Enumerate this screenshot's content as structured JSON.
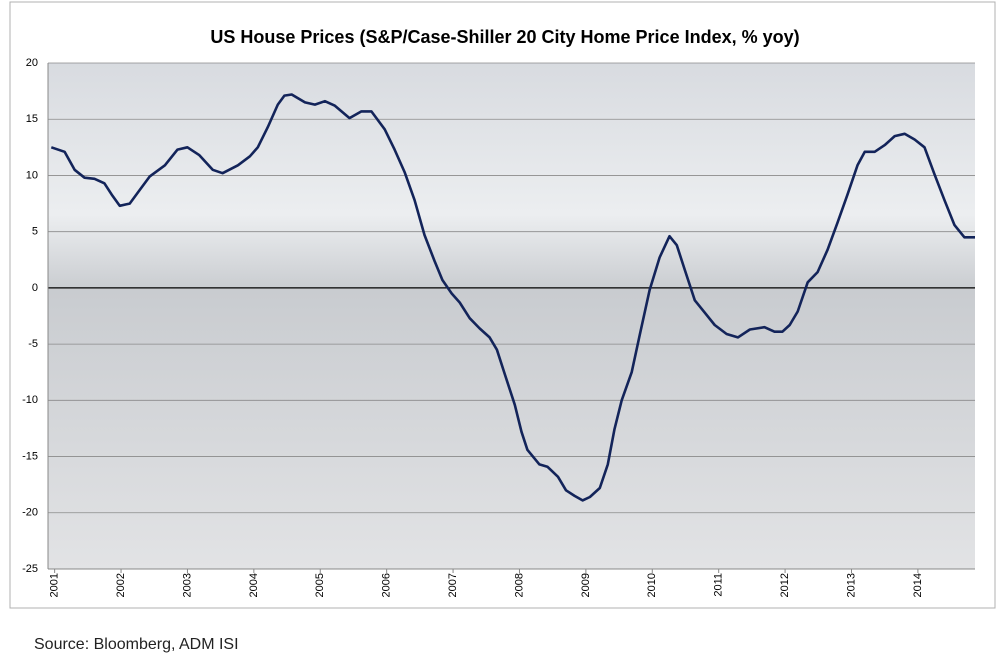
{
  "chart_data": {
    "type": "line",
    "title": "US House Prices (S&P/Case-Shiller 20 City Home Price Index, % yoy)",
    "source": "Source: Bloomberg, ADM ISI",
    "x": [
      2000.95,
      2001.15,
      2001.3,
      2001.45,
      2001.6,
      2001.75,
      2001.86,
      2001.98,
      2002.13,
      2002.28,
      2002.43,
      2002.66,
      2002.85,
      2003.0,
      2003.18,
      2003.38,
      2003.53,
      2003.76,
      2003.94,
      2004.06,
      2004.21,
      2004.36,
      2004.46,
      2004.57,
      2004.77,
      2004.92,
      2005.07,
      2005.22,
      2005.44,
      2005.62,
      2005.77,
      2005.97,
      2006.12,
      2006.27,
      2006.42,
      2006.57,
      2006.72,
      2006.84,
      2006.98,
      2007.1,
      2007.25,
      2007.4,
      2007.55,
      2007.66,
      2007.78,
      2007.93,
      2008.03,
      2008.12,
      2008.3,
      2008.42,
      2008.58,
      2008.7,
      2008.83,
      2008.95,
      2009.06,
      2009.21,
      2009.33,
      2009.43,
      2009.54,
      2009.69,
      2009.81,
      2009.96,
      2010.11,
      2010.26,
      2010.37,
      2010.49,
      2010.64,
      2010.79,
      2010.94,
      2011.12,
      2011.29,
      2011.47,
      2011.69,
      2011.84,
      2011.96,
      2012.07,
      2012.19,
      2012.34,
      2012.49,
      2012.64,
      2012.79,
      2012.94,
      2013.09,
      2013.2,
      2013.35,
      2013.5,
      2013.65,
      2013.8,
      2013.95,
      2014.1,
      2014.25,
      2014.4,
      2014.55,
      2014.7,
      2014.86
    ],
    "series": [
      {
        "name": "S&P/Case-Shiller 20 City",
        "color": "#13245a",
        "values": [
          12.5,
          12.1,
          10.5,
          9.8,
          9.7,
          9.3,
          8.3,
          7.3,
          7.5,
          8.7,
          9.9,
          10.9,
          12.3,
          12.5,
          11.8,
          10.5,
          10.2,
          10.9,
          11.7,
          12.5,
          14.3,
          16.3,
          17.1,
          17.2,
          16.5,
          16.3,
          16.6,
          16.2,
          15.1,
          15.7,
          15.7,
          14.1,
          12.3,
          10.3,
          7.8,
          4.7,
          2.4,
          0.7,
          -0.5,
          -1.3,
          -2.7,
          -3.6,
          -4.4,
          -5.5,
          -7.7,
          -10.4,
          -12.8,
          -14.4,
          -15.7,
          -15.9,
          -16.8,
          -18,
          -18.5,
          -18.9,
          -18.6,
          -17.8,
          -15.7,
          -12.6,
          -10,
          -7.5,
          -4.2,
          -0.2,
          2.7,
          4.6,
          3.8,
          1.6,
          -1.1,
          -2.2,
          -3.3,
          -4.1,
          -4.4,
          -3.7,
          -3.5,
          -3.9,
          -3.9,
          -3.3,
          -2.1,
          0.5,
          1.4,
          3.4,
          5.8,
          8.3,
          10.9,
          12.1,
          12.1,
          12.7,
          13.5,
          13.7,
          13.2,
          12.5,
          10.1,
          7.8,
          5.6,
          4.5,
          4.5
        ]
      }
    ],
    "xlim": [
      2000.9,
      2014.86
    ],
    "xticks": [
      2001,
      2002,
      2003,
      2004,
      2005,
      2006,
      2007,
      2008,
      2009,
      2010,
      2011,
      2012,
      2013,
      2014
    ],
    "ylim": [
      -25,
      20
    ],
    "yticks": [
      -25,
      -20,
      -15,
      -10,
      -5,
      0,
      5,
      10,
      15,
      20
    ],
    "grid": true
  }
}
